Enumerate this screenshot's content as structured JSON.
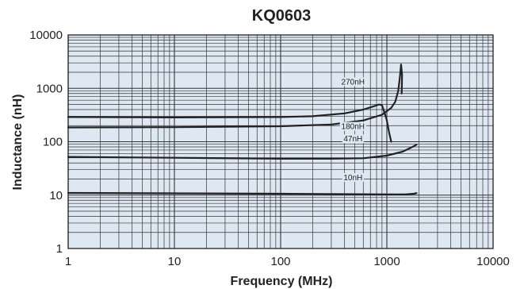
{
  "chart_data": {
    "type": "line",
    "title": "KQ0603",
    "xlabel": "Frequency (MHz)",
    "ylabel": "Inductance (nH)",
    "xscale": "log",
    "yscale": "log",
    "xlim": [
      1,
      10000
    ],
    "ylim": [
      1,
      10000
    ],
    "grid": true,
    "legend": "none",
    "x_ticks": [
      "1",
      "10",
      "100",
      "1000",
      "10000"
    ],
    "y_ticks": [
      "1",
      "10",
      "100",
      "1000",
      "10000"
    ],
    "plot_background": "#dde8f3",
    "line_color": "#222222",
    "series": [
      {
        "name": "270nH",
        "points": [
          [
            1,
            290
          ],
          [
            10,
            285
          ],
          [
            100,
            290
          ],
          [
            200,
            300
          ],
          [
            400,
            340
          ],
          [
            600,
            400
          ],
          [
            750,
            460
          ],
          [
            850,
            500
          ],
          [
            900,
            480
          ],
          [
            950,
            350
          ],
          [
            1000,
            250
          ],
          [
            1050,
            150
          ],
          [
            1100,
            100
          ]
        ]
      },
      {
        "name": "180nH",
        "points": [
          [
            1,
            185
          ],
          [
            10,
            187
          ],
          [
            100,
            195
          ],
          [
            300,
            210
          ],
          [
            600,
            250
          ],
          [
            900,
            320
          ],
          [
            1100,
            430
          ],
          [
            1200,
            560
          ],
          [
            1280,
            900
          ],
          [
            1330,
            1700
          ],
          [
            1360,
            2800
          ],
          [
            1390,
            1800
          ],
          [
            1380,
            800
          ]
        ]
      },
      {
        "name": "47nH",
        "points": [
          [
            1,
            52
          ],
          [
            10,
            50
          ],
          [
            100,
            48
          ],
          [
            300,
            48
          ],
          [
            600,
            49
          ],
          [
            1000,
            55
          ],
          [
            1400,
            65
          ],
          [
            1700,
            78
          ],
          [
            1900,
            88
          ]
        ]
      },
      {
        "name": "10nH",
        "points": [
          [
            1,
            11
          ],
          [
            10,
            10.8
          ],
          [
            100,
            10.6
          ],
          [
            500,
            10.4
          ],
          [
            1000,
            10.3
          ],
          [
            1500,
            10.3
          ],
          [
            1800,
            10.6
          ],
          [
            1900,
            10.9
          ]
        ]
      }
    ],
    "series_labels": [
      {
        "text": "270nH",
        "x": 480,
        "y": 1180.0
      },
      {
        "text": "180nH",
        "x": 480,
        "y": 172
      },
      {
        "text": "47nH",
        "x": 480,
        "y": 101
      },
      {
        "text": "10nH",
        "x": 480,
        "y": 19
      }
    ]
  }
}
